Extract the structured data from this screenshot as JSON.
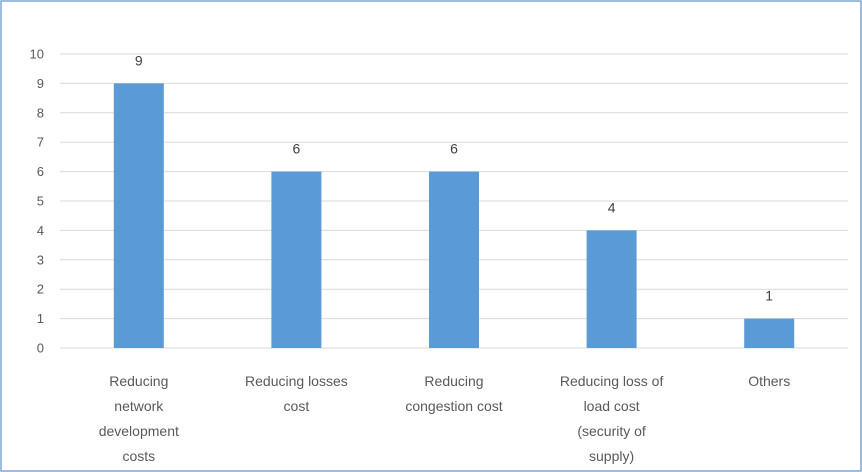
{
  "chart_data": {
    "type": "bar",
    "categories": [
      [
        "Reducing",
        "network",
        "development",
        "costs"
      ],
      [
        "Reducing losses",
        "cost"
      ],
      [
        "Reducing",
        "congestion cost"
      ],
      [
        "Reducing loss of",
        "load cost",
        "(security of",
        "supply)"
      ],
      [
        "Others"
      ]
    ],
    "values": [
      9,
      6,
      6,
      4,
      1
    ],
    "data_labels": [
      "9",
      "6",
      "6",
      "4",
      "1"
    ],
    "title": "",
    "xlabel": "",
    "ylabel": "",
    "ylim": [
      0,
      10
    ],
    "yticks": [
      "0",
      "1",
      "2",
      "3",
      "4",
      "5",
      "6",
      "7",
      "8",
      "9",
      "10"
    ],
    "grid": true,
    "legend": "none"
  },
  "colors": {
    "bar": "#5b9bd5",
    "grid": "#d9d9d9",
    "frame": "#7ea6d8"
  }
}
